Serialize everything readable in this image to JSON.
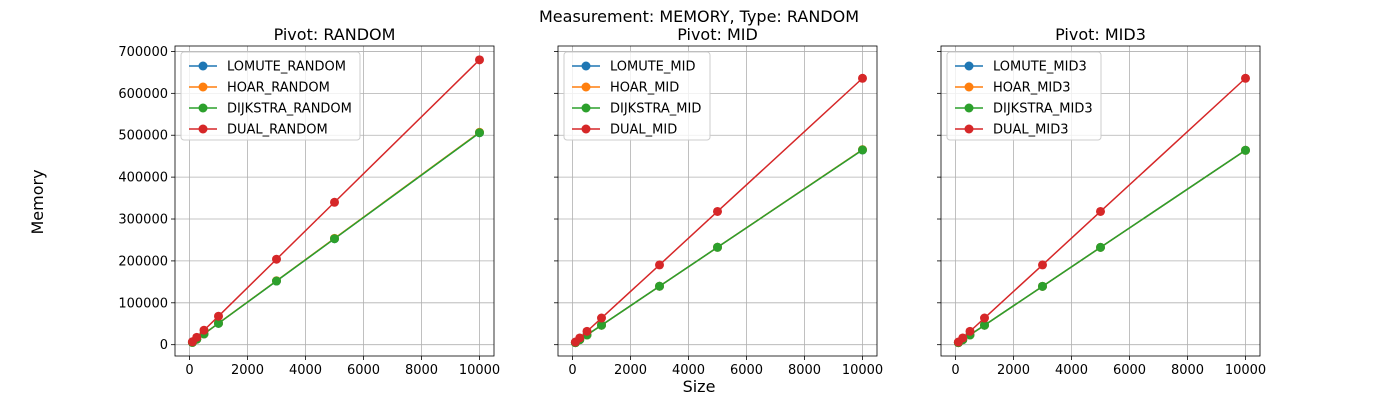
{
  "figure": {
    "suptitle": "Measurement: MEMORY, Type: RANDOM",
    "xlabel": "Size",
    "ylabel": "Memory"
  },
  "colors": {
    "LOMUTE": "#1f77b4",
    "HOAR": "#ff7f0e",
    "DIJKSTRA": "#2ca02c",
    "DUAL": "#d62728"
  },
  "chart_data": [
    {
      "type": "line",
      "title": "Pivot: RANDOM",
      "x": [
        100,
        250,
        500,
        1000,
        3000,
        5000,
        10000
      ],
      "xlim": [
        -500,
        10500
      ],
      "ylim": [
        -27000,
        713000
      ],
      "xticks": [
        0,
        2000,
        4000,
        6000,
        8000,
        10000
      ],
      "yticks": [
        0,
        100000,
        200000,
        300000,
        400000,
        500000,
        600000,
        700000
      ],
      "grid": true,
      "legend_position": "top-left",
      "series": [
        {
          "name": "LOMUTE_RANDOM",
          "color_key": "LOMUTE",
          "values": [
            5400,
            13000,
            25700,
            51000,
            152000,
            253000,
            506000
          ]
        },
        {
          "name": "HOAR_RANDOM",
          "color_key": "HOAR",
          "values": [
            5400,
            13100,
            25800,
            51200,
            152500,
            253800,
            507000
          ]
        },
        {
          "name": "DIJKSTRA_RANDOM",
          "color_key": "DIJKSTRA",
          "values": [
            5400,
            13000,
            25700,
            51000,
            152000,
            253000,
            506000
          ]
        },
        {
          "name": "DUAL_RANDOM",
          "color_key": "DUAL",
          "values": [
            7000,
            17500,
            34500,
            68000,
            204000,
            340000,
            680000
          ]
        }
      ]
    },
    {
      "type": "line",
      "title": "Pivot: MID",
      "x": [
        100,
        250,
        500,
        1000,
        3000,
        5000,
        10000
      ],
      "xlim": [
        -500,
        10500
      ],
      "ylim": [
        -27000,
        713000
      ],
      "xticks": [
        0,
        2000,
        4000,
        6000,
        8000,
        10000
      ],
      "yticks": [
        0,
        100000,
        200000,
        300000,
        400000,
        500000,
        600000,
        700000
      ],
      "grid": true,
      "legend_position": "top-left",
      "series": [
        {
          "name": "LOMUTE_MID",
          "color_key": "LOMUTE",
          "values": [
            4800,
            11800,
            23400,
            46500,
            139500,
            232500,
            465000
          ]
        },
        {
          "name": "HOAR_MID",
          "color_key": "HOAR",
          "values": [
            4800,
            11800,
            23400,
            46500,
            139500,
            232500,
            465500
          ]
        },
        {
          "name": "DIJKSTRA_MID",
          "color_key": "DIJKSTRA",
          "values": [
            4800,
            11800,
            23400,
            46500,
            139500,
            232500,
            465000
          ]
        },
        {
          "name": "DUAL_MID",
          "color_key": "DUAL",
          "values": [
            6400,
            16000,
            31800,
            63600,
            190500,
            318000,
            636000
          ]
        }
      ]
    },
    {
      "type": "line",
      "title": "Pivot: MID3",
      "x": [
        100,
        250,
        500,
        1000,
        3000,
        5000,
        10000
      ],
      "xlim": [
        -500,
        10500
      ],
      "ylim": [
        -27000,
        713000
      ],
      "xticks": [
        0,
        2000,
        4000,
        6000,
        8000,
        10000
      ],
      "yticks": [
        0,
        100000,
        200000,
        300000,
        400000,
        500000,
        600000,
        700000
      ],
      "grid": true,
      "legend_position": "top-left",
      "series": [
        {
          "name": "LOMUTE_MID3",
          "color_key": "LOMUTE",
          "values": [
            4800,
            11800,
            23300,
            46500,
            139300,
            232300,
            464000
          ]
        },
        {
          "name": "HOAR_MID3",
          "color_key": "HOAR",
          "values": [
            4800,
            11800,
            23300,
            46500,
            139300,
            232300,
            464000
          ]
        },
        {
          "name": "DIJKSTRA_MID3",
          "color_key": "DIJKSTRA",
          "values": [
            4800,
            11800,
            23300,
            46500,
            139300,
            232300,
            464000
          ]
        },
        {
          "name": "DUAL_MID3",
          "color_key": "DUAL",
          "values": [
            6400,
            16000,
            31800,
            63600,
            190500,
            318000,
            636000
          ]
        }
      ]
    }
  ]
}
